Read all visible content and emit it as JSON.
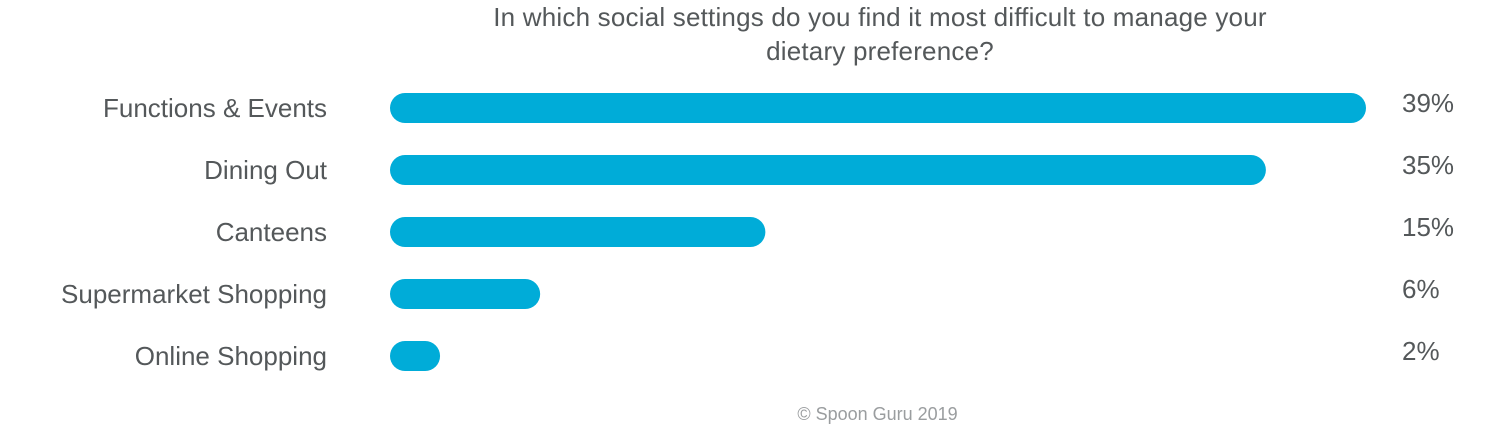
{
  "chart_data": {
    "type": "bar",
    "orientation": "horizontal",
    "title_lines": [
      "In which social settings do you find it most difficult to manage your",
      "dietary preference?"
    ],
    "categories": [
      "Functions & Events",
      "Dining Out",
      "Canteens",
      "Supermarket Shopping",
      "Online Shopping"
    ],
    "values": [
      39,
      35,
      15,
      6,
      2
    ],
    "value_labels": [
      "39%",
      "35%",
      "15%",
      "6%",
      "2%"
    ],
    "unit": "%",
    "xlim": [
      0,
      39
    ],
    "bar_color": "#00acd8",
    "grid": false,
    "legend": "none"
  },
  "footer": {
    "credit": "© Spoon Guru 2019"
  }
}
